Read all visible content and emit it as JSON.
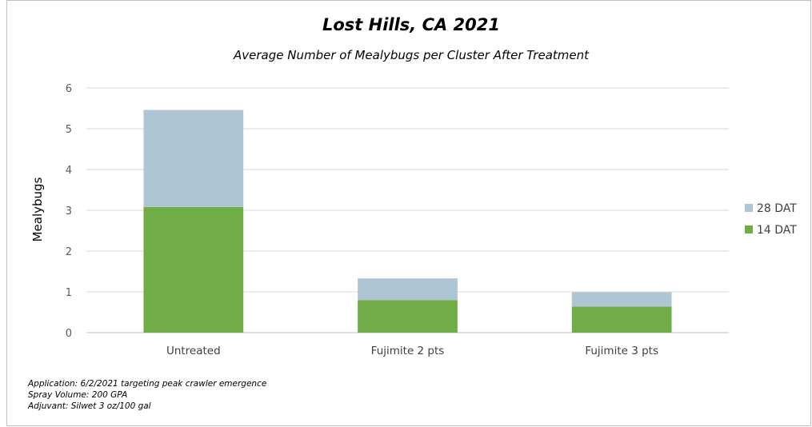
{
  "chart_data": {
    "type": "bar",
    "stacked": true,
    "title": "Lost Hills, CA 2021",
    "subtitle": "Average Number of Mealybugs per Cluster After Treatment",
    "xlabel": "",
    "ylabel": "Mealybugs",
    "categories": [
      "Untreated",
      "Fujimite 2 pts",
      "Fujimite 3 pts"
    ],
    "series": [
      {
        "name": "14 DAT",
        "color": "#70ad47",
        "values": [
          3.08,
          0.8,
          0.64
        ]
      },
      {
        "name": "28 DAT",
        "color": "#aec5d3",
        "values": [
          2.38,
          0.53,
          0.35
        ]
      }
    ],
    "ylim": [
      0,
      6
    ],
    "yticks": [
      "0",
      "1",
      "2",
      "3",
      "4",
      "5",
      "6"
    ],
    "grid": true,
    "legend_position": "right"
  },
  "notes": [
    "Application: 6/2/2021 targeting peak crawler emergence",
    "Spray Volume: 200 GPA",
    "Adjuvant: Silwet 3 oz/100 gal"
  ]
}
